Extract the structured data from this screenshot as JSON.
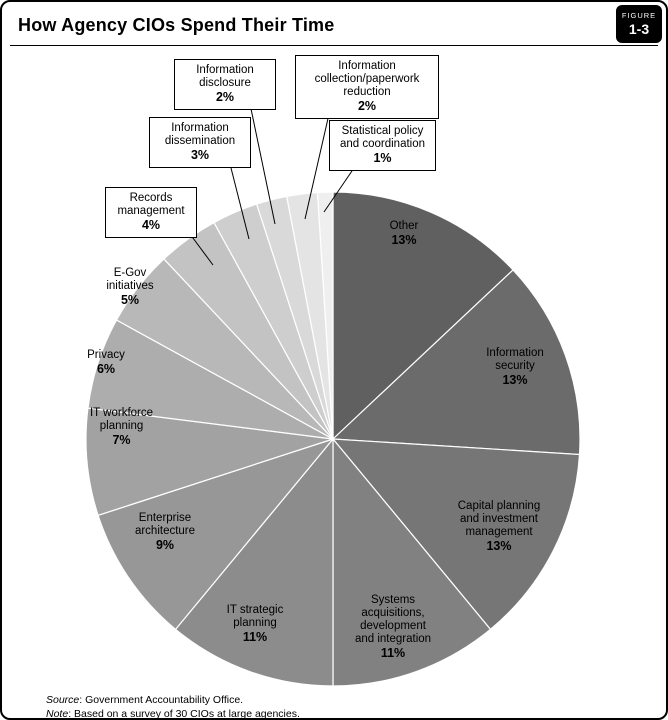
{
  "figure": {
    "label": "FIGURE",
    "number": "1-3"
  },
  "title": "How Agency CIOs Spend Their Time",
  "footer": {
    "source_label": "Source",
    "source_text": ": Government Accountability Office.",
    "note_label": "Note",
    "note_text": ": Based on a survey of 30 CIOs at large agencies."
  },
  "chart_data": {
    "type": "pie",
    "title": "How Agency CIOs Spend Their Time",
    "unit": "percent",
    "direction": "clockwise",
    "start_angle_deg": 0,
    "legend_position": "none",
    "slices": [
      {
        "label": "Other",
        "value": 13,
        "pct_label": "13%",
        "color": "#606060"
      },
      {
        "label": "Information security",
        "value": 13,
        "pct_label": "13%",
        "color": "#6b6b6b"
      },
      {
        "label": "Capital planning and investment management",
        "value": 13,
        "pct_label": "13%",
        "color": "#767676"
      },
      {
        "label": "Systems acquisitions, development and integration",
        "value": 11,
        "pct_label": "11%",
        "color": "#818181"
      },
      {
        "label": "IT strategic planning",
        "value": 11,
        "pct_label": "11%",
        "color": "#8c8c8c"
      },
      {
        "label": "Enterprise architecture",
        "value": 9,
        "pct_label": "9%",
        "color": "#979797"
      },
      {
        "label": "IT workforce planning",
        "value": 7,
        "pct_label": "7%",
        "color": "#a2a2a2"
      },
      {
        "label": "Privacy",
        "value": 6,
        "pct_label": "6%",
        "color": "#adadad"
      },
      {
        "label": "E-Gov initiatives",
        "value": 5,
        "pct_label": "5%",
        "color": "#b8b8b8"
      },
      {
        "label": "Records management",
        "value": 4,
        "pct_label": "4%",
        "color": "#c3c3c3"
      },
      {
        "label": "Information dissemination",
        "value": 3,
        "pct_label": "3%",
        "color": "#cecece"
      },
      {
        "label": "Information disclosure",
        "value": 2,
        "pct_label": "2%",
        "color": "#d9d9d9"
      },
      {
        "label": "Information collection/paperwork reduction",
        "value": 2,
        "pct_label": "2%",
        "color": "#e4e4e4"
      },
      {
        "label": "Statistical policy and coordination",
        "value": 1,
        "pct_label": "1%",
        "color": "#efefef"
      }
    ]
  }
}
